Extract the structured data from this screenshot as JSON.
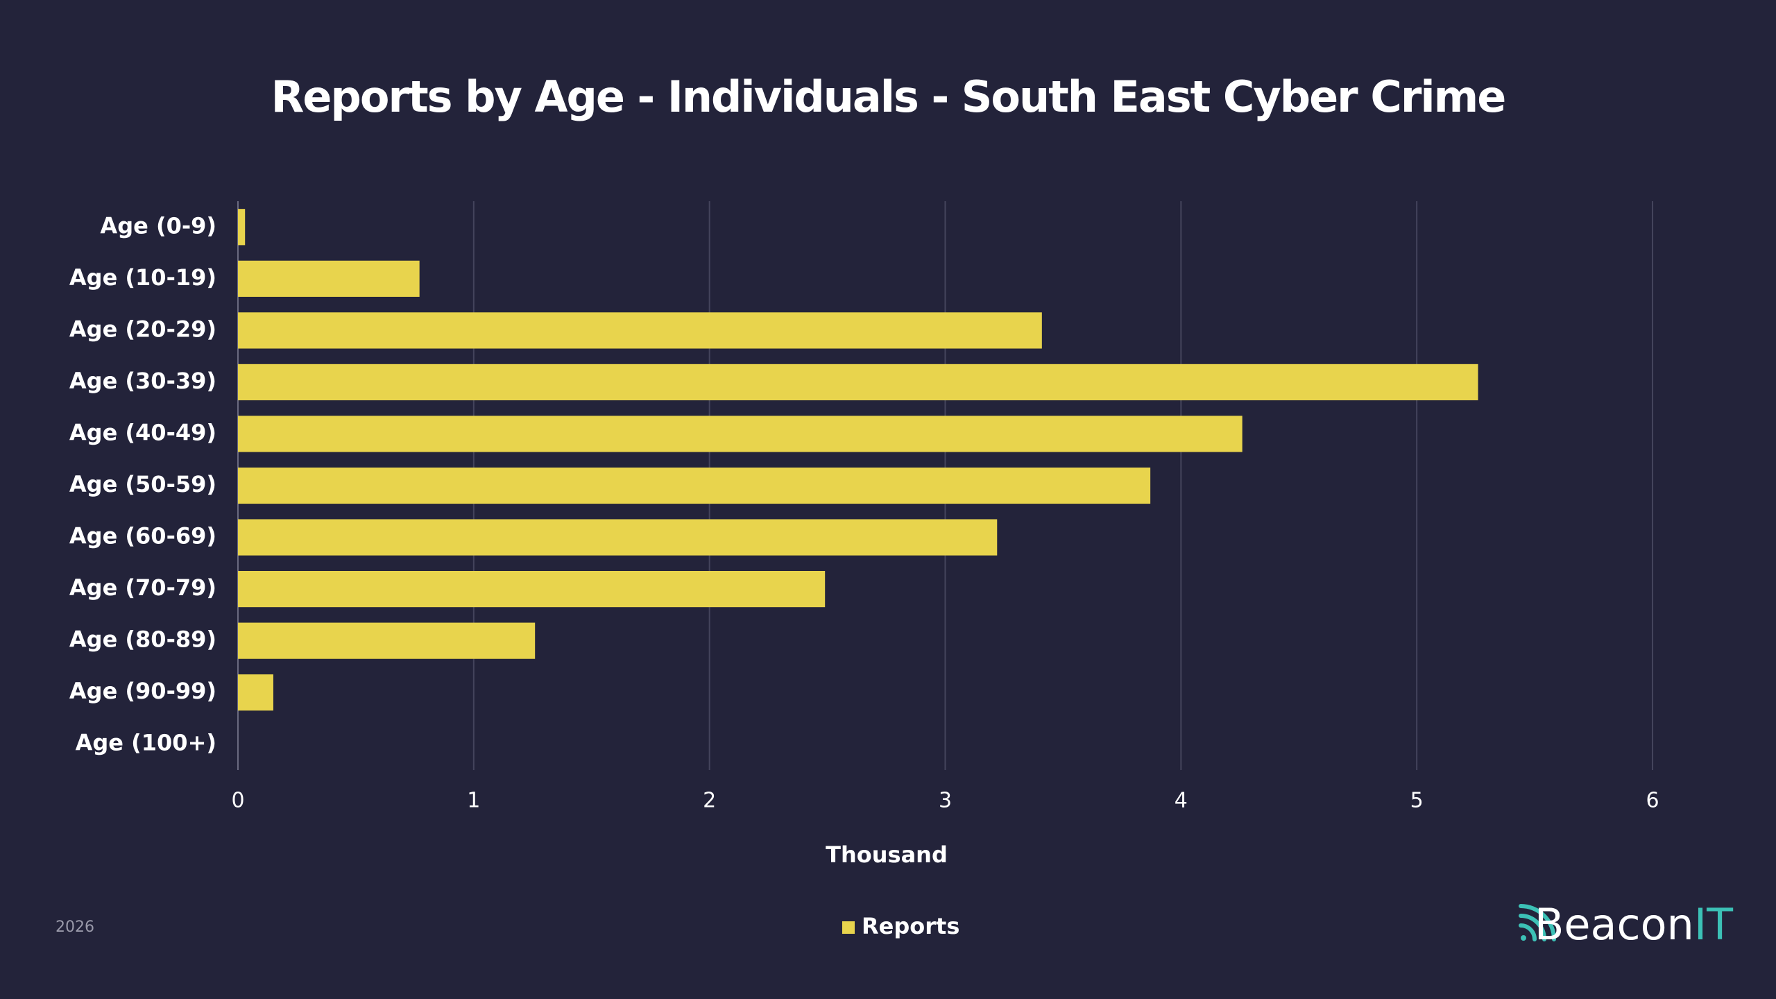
{
  "chart_data": {
    "type": "bar",
    "orientation": "horizontal",
    "title": "Reports by Age - Individuals - South East Cyber Crime",
    "x_label": "Thousand",
    "categories": [
      "Age (0-9)",
      "Age (10-19)",
      "Age (20-29)",
      "Age (30-39)",
      "Age (40-49)",
      "Age (50-59)",
      "Age (60-69)",
      "Age (70-79)",
      "Age (80-89)",
      "Age (90-99)",
      "Age (100+)"
    ],
    "series": [
      {
        "name": "Reports",
        "color": "#e8d44d",
        "values": [
          0.03,
          0.77,
          3.41,
          5.26,
          4.26,
          3.87,
          3.22,
          2.49,
          1.26,
          0.15,
          0
        ]
      }
    ],
    "xlim": [
      0,
      6
    ],
    "xticks": [
      0,
      1,
      2,
      3,
      4,
      5,
      6
    ],
    "grid": true,
    "legend": "bottom"
  },
  "footer": {
    "year": "2026",
    "logo_main": "Beacon",
    "logo_accent": "IT"
  }
}
